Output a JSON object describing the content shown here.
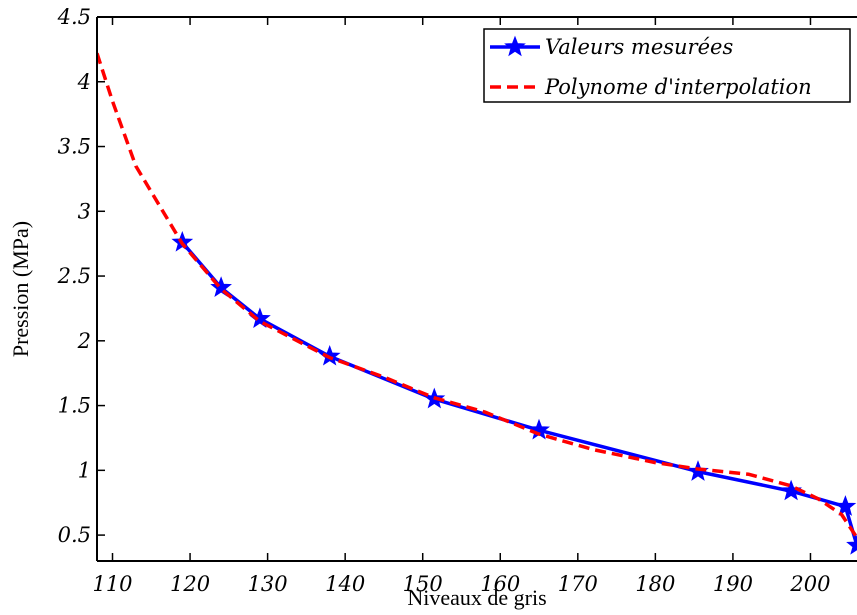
{
  "chart_data": {
    "type": "line",
    "title": "",
    "xlabel": "Niveaux de gris",
    "ylabel": "Pression (MPa)",
    "xlim": [
      108,
      206
    ],
    "ylim": [
      0.3,
      4.5
    ],
    "xticks": [
      110,
      120,
      130,
      140,
      150,
      160,
      170,
      180,
      190,
      200
    ],
    "xtick_labels": [
      "110",
      "120",
      "130",
      "140",
      "150",
      "160",
      "170",
      "180",
      "190",
      "200"
    ],
    "yticks": [
      0.5,
      1,
      1.5,
      2,
      2.5,
      3,
      3.5,
      4,
      4.5
    ],
    "ytick_labels": [
      "0.5",
      "1",
      "1.5",
      "2",
      "2.5",
      "3",
      "3.5",
      "4",
      "4.5"
    ],
    "grid": false,
    "legend_position": "top-right",
    "series": [
      {
        "name": "Valeurs mesurées",
        "color": "#0000ff",
        "style": "solid",
        "marker": "star",
        "x": [
          119,
          124,
          129,
          138,
          151.5,
          165,
          185.5,
          197.5,
          204.5,
          206
        ],
        "y": [
          2.76,
          2.41,
          2.17,
          1.88,
          1.55,
          1.31,
          0.99,
          0.84,
          0.72,
          0.42
        ]
      },
      {
        "name": "Polynome d'interpolation",
        "color": "#ff0000",
        "style": "dashed",
        "marker": "none",
        "x": [
          108,
          110,
          113,
          116,
          119,
          124,
          129,
          138,
          145,
          151.5,
          158,
          165,
          172,
          180,
          185.5,
          192,
          197.5,
          201,
          204,
          206
        ],
        "y": [
          4.22,
          3.85,
          3.35,
          3.05,
          2.75,
          2.4,
          2.15,
          1.87,
          1.72,
          1.56,
          1.45,
          1.28,
          1.16,
          1.06,
          1.01,
          0.97,
          0.88,
          0.78,
          0.66,
          0.48
        ]
      }
    ]
  }
}
